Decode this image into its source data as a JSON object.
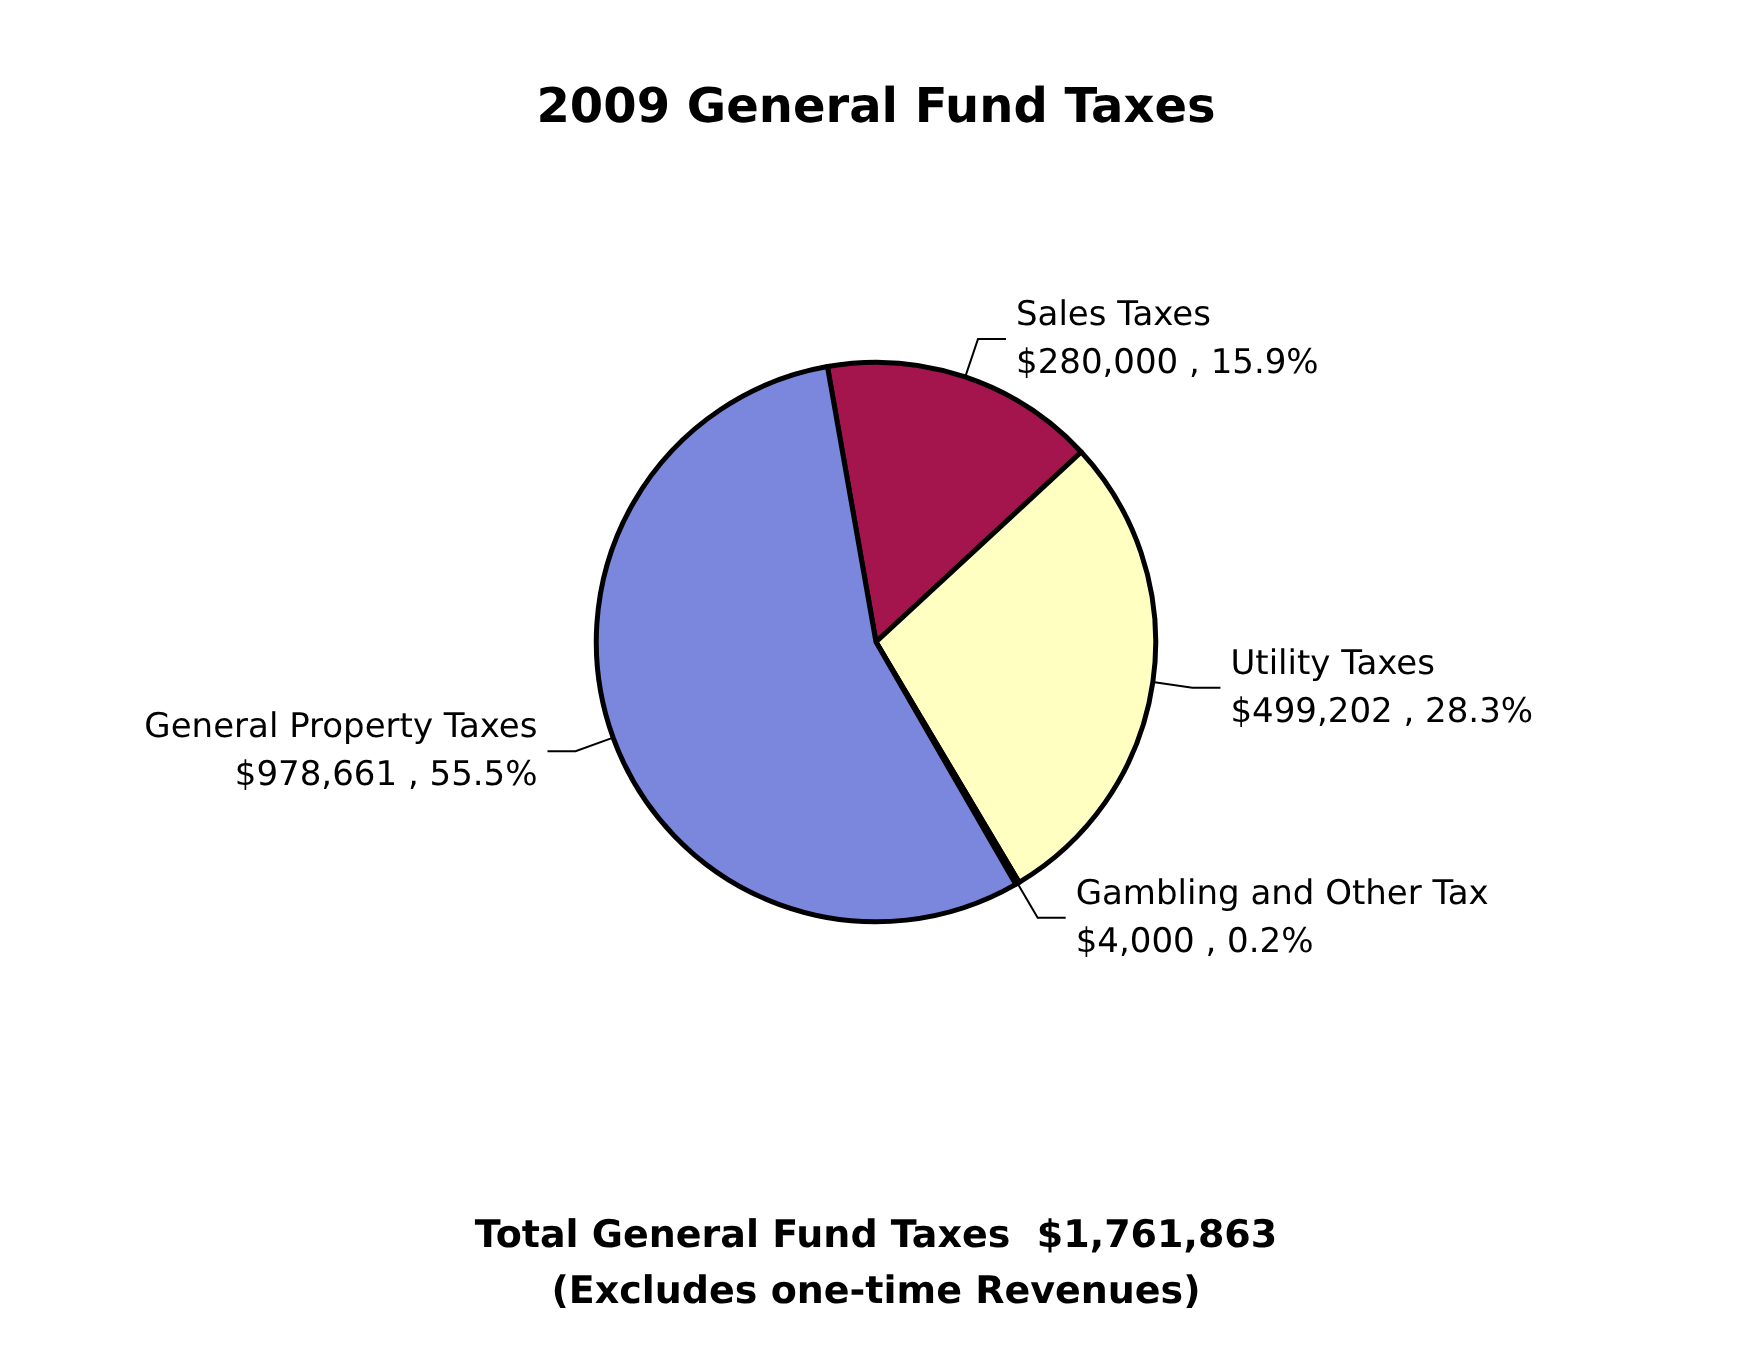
{
  "chart_data": {
    "type": "pie",
    "title": "2009 General Fund Taxes",
    "categories": [
      "Sales Taxes",
      "Utility Taxes",
      "Gambling and Other Tax",
      "General Property Taxes"
    ],
    "values": [
      280000,
      499202,
      4000,
      978661
    ],
    "value_labels": [
      "$280,000 , 15.9%",
      "$499,202 , 28.3%",
      "$4,000 , 0.2%",
      "$978,661 , 55.5%"
    ],
    "colors": [
      "#a3154c",
      "#ffffc2",
      "#556b7a",
      "#7b87dc"
    ],
    "annotations": [
      "Total General Fund Taxes  $1,761,863",
      "(Excludes one-time Revenues)"
    ]
  }
}
